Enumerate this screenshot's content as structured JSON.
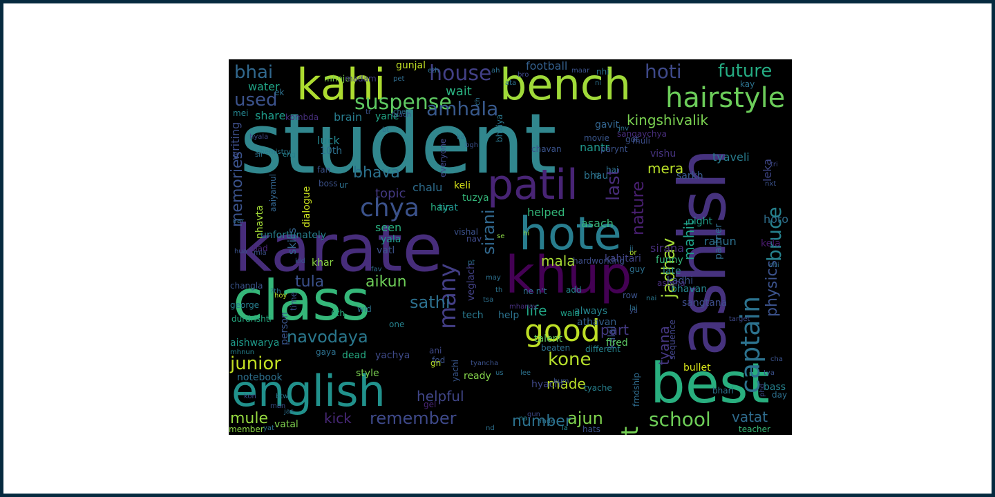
{
  "colors": {
    "page_border": "#062a3f",
    "page_background": "#ffffff",
    "cloud_background": "#000000"
  },
  "words": [
    {
      "t": "student",
      "c": "#31878e"
    },
    {
      "t": "ashish",
      "c": "#46327e"
    },
    {
      "t": "karate",
      "c": "#472d7b"
    },
    {
      "t": "best",
      "c": "#29af7f"
    },
    {
      "t": "english",
      "c": "#21918c"
    },
    {
      "t": "class",
      "c": "#35b779"
    },
    {
      "t": "khup",
      "c": "#440154"
    },
    {
      "t": "bench",
      "c": "#a0da39"
    },
    {
      "t": "kahi",
      "c": "#addc30"
    },
    {
      "t": "hote",
      "c": "#287d8e"
    },
    {
      "t": "patil",
      "c": "#482475"
    },
    {
      "t": "hairstyle",
      "c": "#6ccd5a"
    },
    {
      "t": "captain",
      "c": "#2c728e"
    },
    {
      "t": "good",
      "c": "#bddf26"
    },
    {
      "t": "chya",
      "c": "#3b528b"
    },
    {
      "t": "many",
      "c": "#433e85"
    },
    {
      "t": "house",
      "c": "#424086"
    },
    {
      "t": "suspense",
      "c": "#5ec962"
    },
    {
      "t": "amhala",
      "c": "#38598c"
    },
    {
      "t": "hoti",
      "c": "#3e4989"
    },
    {
      "t": "future",
      "c": "#25ab82"
    },
    {
      "t": "used",
      "c": "#3b528b"
    },
    {
      "t": "bhai",
      "c": "#31688e"
    },
    {
      "t": "kingshivalik",
      "c": "#7ad151"
    },
    {
      "t": "last",
      "c": "#472c7a"
    },
    {
      "t": "physics",
      "c": "#3b528b"
    },
    {
      "t": "bruce",
      "c": "#26828e"
    },
    {
      "t": "jadhav",
      "c": "#a5db36"
    },
    {
      "t": "navodaya",
      "c": "#2a788e"
    },
    {
      "t": "junior",
      "c": "#c2df23"
    },
    {
      "t": "sathi",
      "c": "#2d708e"
    },
    {
      "t": "kone",
      "c": "#b5de2b"
    },
    {
      "t": "remember",
      "c": "#3e4989"
    },
    {
      "t": "school",
      "c": "#6ece58"
    },
    {
      "t": "jast",
      "c": "#75d054"
    },
    {
      "t": "mule",
      "c": "#95d840"
    },
    {
      "t": "kick",
      "c": "#482878"
    },
    {
      "t": "ajun",
      "c": "#7fd34e"
    },
    {
      "t": "number",
      "c": "#2c718e"
    },
    {
      "t": "helpful",
      "c": "#404688"
    },
    {
      "t": "tula",
      "c": "#3b518b"
    },
    {
      "t": "aikun",
      "c": "#6ece58"
    },
    {
      "t": "memories",
      "c": "#3b528b"
    },
    {
      "t": "bhava",
      "c": "#2c728e"
    },
    {
      "t": "mera",
      "c": "#b8de29"
    },
    {
      "t": "nature",
      "c": "#481f70"
    },
    {
      "t": "mahit",
      "c": "#1fa088"
    },
    {
      "t": "sirani",
      "c": "#31688e"
    },
    {
      "t": "mala",
      "c": "#a8db34"
    },
    {
      "t": "life",
      "c": "#21a685"
    },
    {
      "t": "made",
      "c": "#bade28"
    },
    {
      "t": "part",
      "c": "#443a83"
    },
    {
      "t": "vatat",
      "c": "#2f6c8e"
    },
    {
      "t": "tyana",
      "c": "#453781"
    },
    {
      "t": "water",
      "c": "#20a486"
    },
    {
      "t": "football",
      "c": "#34608d"
    },
    {
      "t": "wait",
      "c": "#29af7f"
    },
    {
      "t": "topic",
      "c": "#443983"
    },
    {
      "t": "skills",
      "c": "#33638d"
    },
    {
      "t": "writing",
      "c": "#3d4e8a"
    },
    {
      "t": "dialogue",
      "c": "#cae11f"
    },
    {
      "t": "nhavta",
      "c": "#a2da37"
    },
    {
      "t": "aaiyamul",
      "c": "#32648e"
    },
    {
      "t": "gunjal",
      "c": "#c0df25"
    },
    {
      "t": "share",
      "c": "#1e9b8a"
    },
    {
      "t": "brain",
      "c": "#287c8e"
    },
    {
      "t": "luck",
      "c": "#24868e"
    },
    {
      "t": "10th",
      "c": "#2d708e"
    },
    {
      "t": "chalu",
      "c": "#2e6d8e"
    },
    {
      "t": "keli",
      "c": "#d8e219"
    },
    {
      "t": "tuzya",
      "c": "#34b679"
    },
    {
      "t": "hair",
      "c": "#26ad81"
    },
    {
      "t": "tyat",
      "c": "#20928c"
    },
    {
      "t": "seen",
      "c": "#29af7f"
    },
    {
      "t": "yala",
      "c": "#1f988b"
    },
    {
      "t": "vatl",
      "c": "#3b528b"
    },
    {
      "t": "unfortunately",
      "c": "#277f8e"
    },
    {
      "t": "veglach",
      "c": "#424186"
    },
    {
      "t": "helped",
      "c": "#33b679"
    },
    {
      "t": "asach",
      "c": "#35b779"
    },
    {
      "t": "sirana",
      "c": "#472d7b"
    },
    {
      "t": "rahun",
      "c": "#2d708e"
    },
    {
      "t": "hoto",
      "c": "#2e6f8e"
    },
    {
      "t": "kela",
      "c": "#481a6c"
    },
    {
      "t": "leka",
      "c": "#3f4788"
    },
    {
      "t": "tyaveli",
      "c": "#287c8e"
    },
    {
      "t": "nantr",
      "c": "#1f968b"
    },
    {
      "t": "bhau",
      "c": "#2c738e"
    },
    {
      "t": "sarkh",
      "c": "#38588c"
    },
    {
      "t": "partner",
      "c": "#2f6c8e"
    },
    {
      "t": "night",
      "c": "#1f9e89"
    },
    {
      "t": "vishu",
      "c": "#46337f"
    },
    {
      "t": "funny",
      "c": "#34b679"
    },
    {
      "t": "kadhi",
      "c": "#3a548c"
    },
    {
      "t": "late",
      "c": "#27808e"
    },
    {
      "t": "kahitari",
      "c": "#414487"
    },
    {
      "t": "bhavan",
      "c": "#25848e"
    },
    {
      "t": "kalal",
      "c": "#3b528b"
    },
    {
      "t": "fired",
      "c": "#5cc863"
    },
    {
      "t": "sangtana",
      "c": "#3d4d8a"
    },
    {
      "t": "athavan",
      "c": "#35608d"
    },
    {
      "t": "always",
      "c": "#25858e"
    },
    {
      "t": "help",
      "c": "#2c728e"
    },
    {
      "t": "tech",
      "c": "#29788e"
    },
    {
      "t": "khar",
      "c": "#8bd646"
    },
    {
      "t": "changla",
      "c": "#3a548c"
    },
    {
      "t": "george",
      "c": "#277e8e"
    },
    {
      "t": "person",
      "c": "#39558c"
    },
    {
      "t": "time",
      "c": "#3b528b"
    },
    {
      "t": "durdrishti",
      "c": "#25ac82"
    },
    {
      "t": "aishwarya",
      "c": "#1f9a8a"
    },
    {
      "t": "mhnun",
      "c": "#26828e"
    },
    {
      "t": "gaya",
      "c": "#2d708e"
    },
    {
      "t": "dead",
      "c": "#25ab82"
    },
    {
      "t": "yachya",
      "c": "#3e4a89"
    },
    {
      "t": "yachi",
      "c": "#39568c"
    },
    {
      "t": "notebook",
      "c": "#2d708e"
    },
    {
      "t": "style",
      "c": "#7ad151"
    },
    {
      "t": "ready",
      "c": "#84d44b"
    },
    {
      "t": "hyachi",
      "c": "#3f4889"
    },
    {
      "t": "tyache",
      "c": "#27808e"
    },
    {
      "t": "bullet",
      "c": "#d5e21a"
    },
    {
      "t": "bhari",
      "c": "#2c728e"
    },
    {
      "t": "bass",
      "c": "#26828e"
    },
    {
      "t": "vatal",
      "c": "#7fd34e"
    },
    {
      "t": "member",
      "c": "#8bd646"
    },
    {
      "t": "teacher",
      "c": "#38b977"
    },
    {
      "t": "hats",
      "c": "#3b528b"
    },
    {
      "t": "frndship",
      "c": "#2f6c8e"
    },
    {
      "t": "different",
      "c": "#25848e"
    },
    {
      "t": "beaten",
      "c": "#2d708e"
    },
    {
      "t": "talent",
      "c": "#67cc5c"
    },
    {
      "t": "wala",
      "c": "#1fa188"
    },
    {
      "t": "movie",
      "c": "#39568c"
    },
    {
      "t": "gavit",
      "c": "#32648e"
    },
    {
      "t": "muli",
      "c": "#3d4d8a"
    },
    {
      "t": "bhaiya",
      "c": "#2a778e"
    },
    {
      "t": "kombda",
      "c": "#472f7d"
    },
    {
      "t": "yane",
      "c": "#21a585"
    },
    {
      "t": "everyone",
      "c": "#3e4989"
    },
    {
      "t": "chavan",
      "c": "#3a538b"
    },
    {
      "t": "sangaychya",
      "c": "#472d7b"
    },
    {
      "t": "parynt",
      "c": "#3b528b"
    },
    {
      "t": "mhanay",
      "c": "#46307e"
    },
    {
      "t": "hardworking",
      "c": "#3d4d8a"
    },
    {
      "t": "mhnje",
      "c": "#7fd34e"
    },
    {
      "t": "madam",
      "c": "#433e85"
    },
    {
      "t": "hyala",
      "c": "#3e4a89"
    },
    {
      "t": "chemistry",
      "c": "#2a788e"
    },
    {
      "t": "sir",
      "c": "#2c728e"
    },
    {
      "t": "eng",
      "c": "#26828e"
    },
    {
      "t": "fan",
      "c": "#3b528b"
    },
    {
      "t": "mei",
      "c": "#25848e"
    },
    {
      "t": "pet",
      "c": "#2f6c8e"
    },
    {
      "t": "sequence",
      "c": "#414487"
    },
    {
      "t": "target",
      "c": "#3e4989"
    },
    {
      "t": "add",
      "c": "#24868e"
    },
    {
      "t": "row",
      "c": "#3b528b"
    },
    {
      "t": "guy",
      "c": "#2d708e"
    },
    {
      "t": "vishal",
      "c": "#3b518b"
    },
    {
      "t": "nav",
      "c": "#3e4989"
    },
    {
      "t": "bad",
      "c": "#482475"
    },
    {
      "t": "var",
      "c": "#2f6c8e"
    },
    {
      "t": "hua",
      "c": "#3b528b"
    },
    {
      "t": "mla",
      "c": "#3b528b"
    },
    {
      "t": "kid",
      "c": "#39558c"
    },
    {
      "t": "fav",
      "c": "#2f6c8e"
    },
    {
      "t": "one",
      "c": "#26828e"
    },
    {
      "t": "6th",
      "c": "#29af7f"
    },
    {
      "t": "ani",
      "c": "#3e4989"
    },
    {
      "t": "fod",
      "c": "#3b528b"
    },
    {
      "t": "gn",
      "c": "#b5de2b"
    },
    {
      "t": "us",
      "c": "#2d708e"
    },
    {
      "t": "lee",
      "c": "#2c728e"
    },
    {
      "t": "gel",
      "c": "#482475"
    },
    {
      "t": "btw",
      "c": "#2a788e"
    },
    {
      "t": "kon",
      "c": "#3e4989"
    },
    {
      "t": "jas",
      "c": "#2d708e"
    },
    {
      "t": "man",
      "c": "#3b528b"
    },
    {
      "t": "yat",
      "c": "#2d708e"
    },
    {
      "t": "gun",
      "c": "#3e4989"
    },
    {
      "t": "na",
      "c": "#26828e"
    },
    {
      "t": "mde",
      "c": "#2c728e"
    },
    {
      "t": "la",
      "c": "#24868e"
    },
    {
      "t": "nd",
      "c": "#2d708e"
    },
    {
      "t": "hum",
      "c": "#3b528b"
    },
    {
      "t": "day",
      "c": "#2d708e"
    },
    {
      "t": "tya",
      "c": "#3b528b"
    },
    {
      "t": "cha",
      "c": "#3b528b"
    },
    {
      "t": "phd",
      "c": "#3e4989"
    },
    {
      "t": "astana",
      "c": "#472d7b"
    },
    {
      "t": "chi",
      "c": "#2d708e"
    },
    {
      "t": "ya",
      "c": "#3b528b"
    },
    {
      "t": "lai",
      "c": "#2d708e"
    },
    {
      "t": "nai",
      "c": "#2a788e"
    },
    {
      "t": "br",
      "c": "#addc30"
    },
    {
      "t": "ji",
      "c": "#2d708e"
    },
    {
      "t": "ti",
      "c": "#2c728e"
    },
    {
      "t": "hai",
      "c": "#2d708e"
    },
    {
      "t": "jnv",
      "c": "#2d708e"
    },
    {
      "t": "got",
      "c": "#3b528b"
    },
    {
      "t": "tri",
      "c": "#3e4989"
    },
    {
      "t": "nxt",
      "c": "#3b528b"
    },
    {
      "t": "kay",
      "c": "#2c728e"
    },
    {
      "t": "ni",
      "c": "#2d708e"
    },
    {
      "t": "nhi",
      "c": "#2c728e"
    },
    {
      "t": "maar",
      "c": "#3b528b"
    },
    {
      "t": "ah",
      "c": "#2d708e"
    },
    {
      "t": "eth",
      "c": "#2c728e"
    },
    {
      "t": "ata",
      "c": "#2d708e"
    },
    {
      "t": "bro",
      "c": "#3e4989"
    },
    {
      "t": "ch",
      "c": "#2d708e"
    },
    {
      "t": "tyach",
      "c": "#3b528b"
    },
    {
      "t": "bt",
      "c": "#2d708e"
    },
    {
      "t": "tr",
      "c": "#3b528b"
    },
    {
      "t": "che",
      "c": "#2d708e"
    },
    {
      "t": "ek",
      "c": "#2d708e"
    },
    {
      "t": "ka",
      "c": "#2c728e"
    },
    {
      "t": "bgh",
      "c": "#3b528b"
    },
    {
      "t": "hi",
      "c": "#8bd646"
    },
    {
      "t": "se",
      "c": "#8bd646"
    },
    {
      "t": "pt",
      "c": "#2d708e"
    },
    {
      "t": "may",
      "c": "#2d708e"
    },
    {
      "t": "th",
      "c": "#2c728e"
    },
    {
      "t": "tsa",
      "c": "#2d708e"
    },
    {
      "t": "ne n't",
      "c": "#2d708e"
    },
    {
      "t": "wid",
      "c": "#2c728e"
    },
    {
      "t": "?th",
      "c": "#2d708e"
    },
    {
      "t": "hoy",
      "c": "#b5de2b"
    },
    {
      "t": "tyancha",
      "c": "#3b528b"
    },
    {
      "t": "ur",
      "c": "#2d708e"
    },
    {
      "t": "boss",
      "c": "#3b528b"
    }
  ]
}
